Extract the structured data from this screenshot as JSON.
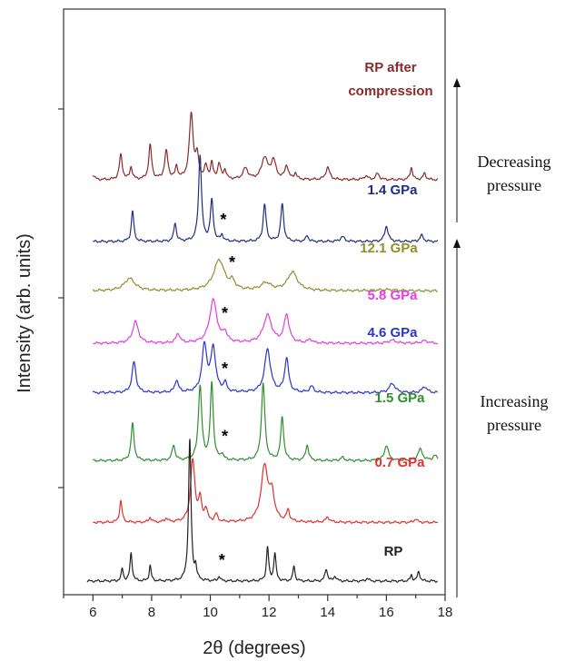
{
  "chart_data": {
    "type": "line",
    "xlabel": "2θ (degrees)",
    "ylabel": "Intensity (arb. units)",
    "xlim": [
      5,
      18
    ],
    "xticks": [
      6,
      8,
      10,
      12,
      14,
      16,
      18
    ],
    "series": [
      {
        "name": "RP after compression",
        "label_lines": [
          "RP after",
          "compression"
        ],
        "color": "#8b2a2a",
        "baseline": 6.5,
        "star_at": null,
        "peaks": [
          [
            6.0,
            0.08,
            0.06
          ],
          [
            6.95,
            0.4,
            0.06
          ],
          [
            7.3,
            0.2,
            0.05
          ],
          [
            7.95,
            0.55,
            0.06
          ],
          [
            8.5,
            0.45,
            0.07
          ],
          [
            8.85,
            0.2,
            0.05
          ],
          [
            9.35,
            1.05,
            0.08
          ],
          [
            9.55,
            0.35,
            0.06
          ],
          [
            9.85,
            0.2,
            0.06
          ],
          [
            10.05,
            0.25,
            0.05
          ],
          [
            10.3,
            0.25,
            0.06
          ],
          [
            10.5,
            0.15,
            0.05
          ],
          [
            11.2,
            0.18,
            0.1
          ],
          [
            11.85,
            0.35,
            0.12
          ],
          [
            12.15,
            0.3,
            0.1
          ],
          [
            12.6,
            0.22,
            0.07
          ],
          [
            12.9,
            0.1,
            0.05
          ],
          [
            14.0,
            0.2,
            0.08
          ],
          [
            15.3,
            0.06,
            0.08
          ],
          [
            15.7,
            0.1,
            0.07
          ],
          [
            16.85,
            0.2,
            0.05
          ],
          [
            17.3,
            0.1,
            0.06
          ]
        ]
      },
      {
        "name": "1.4 GPa",
        "color": "#1f2f7f",
        "baseline": 5.5,
        "star_at": 10.35,
        "peaks": [
          [
            7.35,
            0.5,
            0.05
          ],
          [
            8.8,
            0.3,
            0.05
          ],
          [
            9.65,
            1.4,
            0.06
          ],
          [
            10.05,
            0.65,
            0.06
          ],
          [
            10.4,
            0.1,
            0.05
          ],
          [
            11.85,
            0.6,
            0.06
          ],
          [
            12.45,
            0.6,
            0.06
          ],
          [
            13.3,
            0.1,
            0.05
          ],
          [
            14.5,
            0.08,
            0.08
          ],
          [
            16.0,
            0.25,
            0.07
          ],
          [
            17.2,
            0.1,
            0.07
          ]
        ]
      },
      {
        "name": "12.1 GPa",
        "color": "#8f8f2a",
        "baseline": 4.7,
        "star_at": 10.65,
        "peaks": [
          [
            7.25,
            0.2,
            0.22
          ],
          [
            10.3,
            0.5,
            0.22
          ],
          [
            10.75,
            0.12,
            0.1
          ],
          [
            11.9,
            0.12,
            0.2
          ],
          [
            12.8,
            0.3,
            0.2
          ],
          [
            16.0,
            0.02,
            0.4
          ]
        ]
      },
      {
        "name": "5.8 GPa",
        "color": "#e23ce2",
        "baseline": 3.85,
        "star_at": 10.4,
        "peaks": [
          [
            7.45,
            0.35,
            0.12
          ],
          [
            8.9,
            0.15,
            0.08
          ],
          [
            10.1,
            0.7,
            0.15
          ],
          [
            10.5,
            0.15,
            0.08
          ],
          [
            11.95,
            0.45,
            0.17
          ],
          [
            12.6,
            0.45,
            0.1
          ],
          [
            13.4,
            0.06,
            0.08
          ],
          [
            16.2,
            0.05,
            0.15
          ],
          [
            17.3,
            0.04,
            0.15
          ]
        ]
      },
      {
        "name": "4.6 GPa",
        "color": "#2b35c9",
        "baseline": 3.05,
        "star_at": 10.4,
        "peaks": [
          [
            7.4,
            0.5,
            0.08
          ],
          [
            8.85,
            0.2,
            0.07
          ],
          [
            9.8,
            0.75,
            0.1
          ],
          [
            10.1,
            0.7,
            0.1
          ],
          [
            10.5,
            0.15,
            0.06
          ],
          [
            11.95,
            0.7,
            0.12
          ],
          [
            12.6,
            0.55,
            0.08
          ],
          [
            13.45,
            0.1,
            0.08
          ],
          [
            16.2,
            0.15,
            0.12
          ],
          [
            17.3,
            0.1,
            0.1
          ]
        ]
      },
      {
        "name": "1.5 GPa",
        "color": "#2f8f2f",
        "baseline": 1.95,
        "star_at": 10.4,
        "peaks": [
          [
            7.35,
            0.6,
            0.06
          ],
          [
            8.75,
            0.25,
            0.06
          ],
          [
            9.65,
            1.2,
            0.07
          ],
          [
            10.05,
            1.25,
            0.06
          ],
          [
            10.4,
            0.1,
            0.05
          ],
          [
            11.8,
            1.25,
            0.07
          ],
          [
            12.45,
            0.7,
            0.06
          ],
          [
            13.3,
            0.25,
            0.06
          ],
          [
            14.5,
            0.05,
            0.08
          ],
          [
            16.0,
            0.25,
            0.08
          ],
          [
            17.15,
            0.18,
            0.1
          ],
          [
            17.65,
            0.08,
            0.08
          ]
        ]
      },
      {
        "name": "0.7 GPa",
        "color": "#e03030",
        "baseline": 0.95,
        "star_at": null,
        "peaks": [
          [
            6.95,
            0.35,
            0.05
          ],
          [
            7.95,
            0.08,
            0.05
          ],
          [
            8.5,
            0.06,
            0.06
          ],
          [
            9.4,
            1.0,
            0.09
          ],
          [
            9.65,
            0.35,
            0.06
          ],
          [
            9.85,
            0.2,
            0.06
          ],
          [
            10.2,
            0.12,
            0.06
          ],
          [
            11.85,
            0.9,
            0.14
          ],
          [
            12.1,
            0.4,
            0.1
          ],
          [
            12.65,
            0.18,
            0.06
          ],
          [
            14.0,
            0.08,
            0.08
          ],
          [
            17.0,
            0.06,
            0.06
          ]
        ]
      },
      {
        "name": "RP",
        "color": "#222222",
        "baseline": 0.0,
        "star_at": 10.3,
        "peaks": [
          [
            7.0,
            0.2,
            0.04
          ],
          [
            7.3,
            0.45,
            0.045
          ],
          [
            7.95,
            0.25,
            0.04
          ],
          [
            9.3,
            2.3,
            0.05
          ],
          [
            9.5,
            0.2,
            0.04
          ],
          [
            10.3,
            0.08,
            0.04
          ],
          [
            11.95,
            0.55,
            0.045
          ],
          [
            12.2,
            0.45,
            0.045
          ],
          [
            12.85,
            0.25,
            0.04
          ],
          [
            13.95,
            0.2,
            0.05
          ],
          [
            14.25,
            0.08,
            0.05
          ],
          [
            15.35,
            0.05,
            0.05
          ],
          [
            16.85,
            0.1,
            0.04
          ],
          [
            17.1,
            0.15,
            0.05
          ]
        ]
      }
    ]
  },
  "annotations": {
    "star": "*",
    "decreasing": [
      "Decreasing",
      "pressure"
    ],
    "increasing": [
      "Increasing",
      "pressure"
    ]
  }
}
